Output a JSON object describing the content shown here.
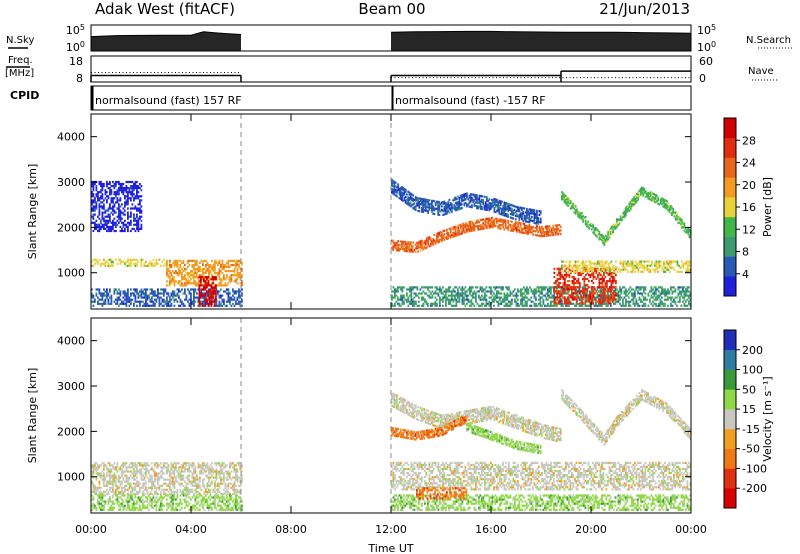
{
  "header": {
    "station": "Adak West (fitACF)",
    "beam": "Beam 00",
    "date": "21/Jun/2013"
  },
  "top_panel_labels": {
    "nsky": "N.Sky",
    "nsearch": "N.Search",
    "freq": "Freq.",
    "freq_unit": "[MHz]",
    "nave": "Nave",
    "cpid": "CPID",
    "nsky_ticks": [
      "10^5",
      "10^0"
    ],
    "nsearch_ticks": [
      "10^5",
      "10^0"
    ],
    "freq_ticks": [
      "18",
      "8"
    ],
    "nave_ticks": [
      "60",
      "0"
    ]
  },
  "cpid_labels": [
    {
      "text": "normalsound (fast) 157 RF",
      "start_hour": 0
    },
    {
      "text": "normalsound (fast) -157 RF",
      "start_hour": 12
    }
  ],
  "colors": {
    "power": [
      "#1f1fdc",
      "#2859b4",
      "#3b9a70",
      "#43b649",
      "#e8d23a",
      "#f39a22",
      "#e8651c",
      "#e02d10",
      "#d00000"
    ],
    "velocity": [
      "#1f2fb8",
      "#2d7fa0",
      "#3a9a3a",
      "#8fd848",
      "#c8c8c0",
      "#f0a020",
      "#f07818",
      "#e03010",
      "#d80000"
    ],
    "ground_scatter": "#c0c0bc",
    "frame": "#000000"
  },
  "chart_data": [
    {
      "type": "line",
      "name": "sky-noise-panel",
      "ylabel_left": "N.Sky",
      "ylabel_right": "N.Search",
      "yscale": "log",
      "ylim": [
        1,
        100000
      ],
      "xlim": [
        0,
        24
      ],
      "segments": [
        {
          "x": [
            0,
            1,
            2,
            3,
            4,
            4.5,
            5,
            5.5,
            6
          ],
          "y": [
            600,
            900,
            1000,
            1100,
            1100,
            5000,
            3000,
            2000,
            1500
          ]
        },
        {
          "x": [
            12,
            13,
            14,
            15,
            16,
            17,
            18,
            19,
            20,
            21,
            22,
            23,
            24
          ],
          "y": [
            4000,
            5000,
            5500,
            6000,
            6000,
            5000,
            4500,
            4000,
            4000,
            4000,
            3500,
            3000,
            2500
          ]
        }
      ]
    },
    {
      "type": "line",
      "name": "frequency-panel",
      "ylabel_left": "Freq. [MHz]",
      "ylabel_right": "Nave",
      "ylim": [
        8,
        18
      ],
      "ylim_right": [
        0,
        60
      ],
      "xlim": [
        0,
        24
      ],
      "freq_segments": [
        {
          "x": [
            0,
            6
          ],
          "y": [
            10.5,
            10.5
          ]
        },
        {
          "x": [
            12,
            18.8
          ],
          "y": [
            10.5,
            10.5
          ]
        },
        {
          "x": [
            18.8,
            24
          ],
          "y": [
            12.2,
            12.2
          ]
        }
      ],
      "nave_segments": [
        {
          "x": [
            0,
            6
          ],
          "y": [
            22,
            22
          ]
        },
        {
          "x": [
            12,
            24
          ],
          "y": [
            10,
            10
          ]
        }
      ]
    },
    {
      "type": "heatmap",
      "name": "power-panel",
      "ylabel": "Slant Range [km]",
      "xlabel": "Time UT",
      "xlim": [
        0,
        24
      ],
      "ylim": [
        200,
        4500
      ],
      "x_ticks": [
        "00:00",
        "04:00",
        "08:00",
        "12:00",
        "16:00",
        "20:00",
        "00:00"
      ],
      "y_ticks": [
        1000,
        2000,
        3000,
        4000
      ],
      "colorbar_label": "Power [dB]",
      "colorbar_ticks": [
        "28",
        "24",
        "20",
        "16",
        "12",
        "8",
        "4"
      ],
      "features": [
        {
          "x": [
            0,
            3
          ],
          "y": [
            1130,
            1300
          ],
          "level": 4
        },
        {
          "x": [
            0,
            6
          ],
          "y": [
            250,
            650
          ],
          "level": 1
        },
        {
          "x": [
            3,
            6
          ],
          "y": [
            700,
            1250
          ],
          "level": 5
        },
        {
          "x": [
            4.3,
            5
          ],
          "y": [
            250,
            900
          ],
          "level": 8
        },
        {
          "x": [
            0,
            2
          ],
          "y": [
            1900,
            3000
          ],
          "level": 0
        },
        {
          "x": [
            12,
            24
          ],
          "y": [
            250,
            700
          ],
          "level": 2
        },
        {
          "x": [
            18.5,
            21
          ],
          "y": [
            300,
            1100
          ],
          "level": 7
        },
        {
          "x": [
            18.8,
            24
          ],
          "y": [
            1000,
            1250
          ],
          "level": 4
        }
      ],
      "traces": [
        {
          "x": [
            12,
            13,
            14,
            15,
            16,
            17,
            18,
            18.8
          ],
          "y": [
            1600,
            1550,
            1800,
            2000,
            2100,
            2000,
            1900,
            1950
          ],
          "level": 6,
          "width": 220
        },
        {
          "x": [
            12,
            13,
            14,
            15,
            16,
            17,
            18
          ],
          "y": [
            2900,
            2500,
            2400,
            2600,
            2500,
            2300,
            2200
          ],
          "level": 1,
          "width": 300
        },
        {
          "x": [
            18.8,
            19.5,
            20.5,
            21,
            22,
            23,
            24
          ],
          "y": [
            2700,
            2300,
            1700,
            2100,
            2800,
            2500,
            1800
          ],
          "level": 3,
          "width": 200
        }
      ]
    },
    {
      "type": "heatmap",
      "name": "velocity-panel",
      "ylabel": "Slant Range [km]",
      "xlabel": "Time UT",
      "xlim": [
        0,
        24
      ],
      "ylim": [
        200,
        4500
      ],
      "x_ticks": [
        "00:00",
        "04:00",
        "08:00",
        "12:00",
        "16:00",
        "20:00",
        "00:00"
      ],
      "y_ticks": [
        1000,
        2000,
        3000,
        4000
      ],
      "colorbar_label": "Velocity [m s⁻¹]",
      "colorbar_ticks": [
        "200",
        "100",
        "50",
        "15",
        "-15",
        "-50",
        "-100",
        "-200"
      ],
      "features": [
        {
          "x": [
            0,
            6
          ],
          "y": [
            600,
            1300
          ],
          "level": 4
        },
        {
          "x": [
            0,
            6
          ],
          "y": [
            250,
            600
          ],
          "level": 3
        },
        {
          "x": [
            12,
            24
          ],
          "y": [
            700,
            1300
          ],
          "level": 4
        },
        {
          "x": [
            12,
            24
          ],
          "y": [
            250,
            600
          ],
          "level": 3
        },
        {
          "x": [
            13,
            15
          ],
          "y": [
            500,
            750
          ],
          "level": 6
        }
      ],
      "traces": [
        {
          "x": [
            12,
            13,
            14,
            15,
            16,
            17,
            18,
            18.8
          ],
          "y": [
            2700,
            2400,
            2200,
            2300,
            2400,
            2200,
            2000,
            1900
          ],
          "level": 4,
          "width": 300
        },
        {
          "x": [
            12,
            13,
            14,
            15
          ],
          "y": [
            2000,
            1900,
            2000,
            2300
          ],
          "level": 6,
          "width": 200
        },
        {
          "x": [
            15,
            16,
            17,
            18
          ],
          "y": [
            2100,
            1900,
            1700,
            1600
          ],
          "level": 3,
          "width": 200
        },
        {
          "x": [
            18.8,
            19.5,
            20.5,
            21,
            22,
            23,
            24
          ],
          "y": [
            2800,
            2400,
            1800,
            2200,
            2800,
            2500,
            1900
          ],
          "level": 4,
          "width": 220
        }
      ]
    }
  ]
}
